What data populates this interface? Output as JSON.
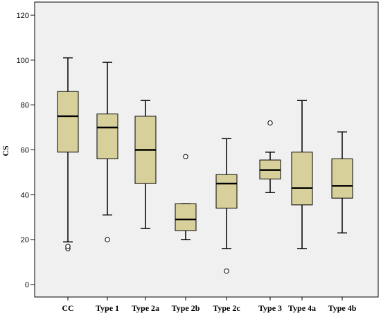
{
  "chart_data": {
    "type": "boxplot",
    "title": "",
    "xlabel": "",
    "ylabel": "CS",
    "ylim": [
      -6,
      126
    ],
    "yticks": [
      0,
      20,
      40,
      60,
      80,
      100,
      120
    ],
    "grid": false,
    "colors": {
      "box_fill": "#d8d09a",
      "plot_bg": "#f0f0f0",
      "stroke": "#000000"
    },
    "categories": [
      "CC",
      "Type 1",
      "Type 2a",
      "Type 2b",
      "Type 2c",
      "Type 3",
      "Type 4a",
      "Type 4b"
    ],
    "boxes": [
      {
        "whisker_low": 19,
        "q1": 59,
        "median": 75,
        "q3": 86,
        "whisker_high": 101,
        "outliers": [
          16,
          17
        ]
      },
      {
        "whisker_low": 31,
        "q1": 56,
        "median": 70,
        "q3": 76,
        "whisker_high": 99,
        "outliers": [
          20
        ]
      },
      {
        "whisker_low": 25,
        "q1": 45,
        "median": 60,
        "q3": 75,
        "whisker_high": 82,
        "outliers": []
      },
      {
        "whisker_low": 20,
        "q1": 24,
        "median": 29,
        "q3": 36,
        "whisker_high": 36,
        "outliers": [
          57
        ]
      },
      {
        "whisker_low": 16,
        "q1": 34,
        "median": 45,
        "q3": 49,
        "whisker_high": 65,
        "outliers": [
          6
        ]
      },
      {
        "whisker_low": 41,
        "q1": 47,
        "median": 51,
        "q3": 55.5,
        "whisker_high": 59,
        "outliers": [
          72
        ]
      },
      {
        "whisker_low": 16,
        "q1": 35.5,
        "median": 43,
        "q3": 59,
        "whisker_high": 82,
        "outliers": []
      },
      {
        "whisker_low": 23,
        "q1": 38.5,
        "median": 44,
        "q3": 56,
        "whisker_high": 68,
        "outliers": []
      }
    ]
  }
}
